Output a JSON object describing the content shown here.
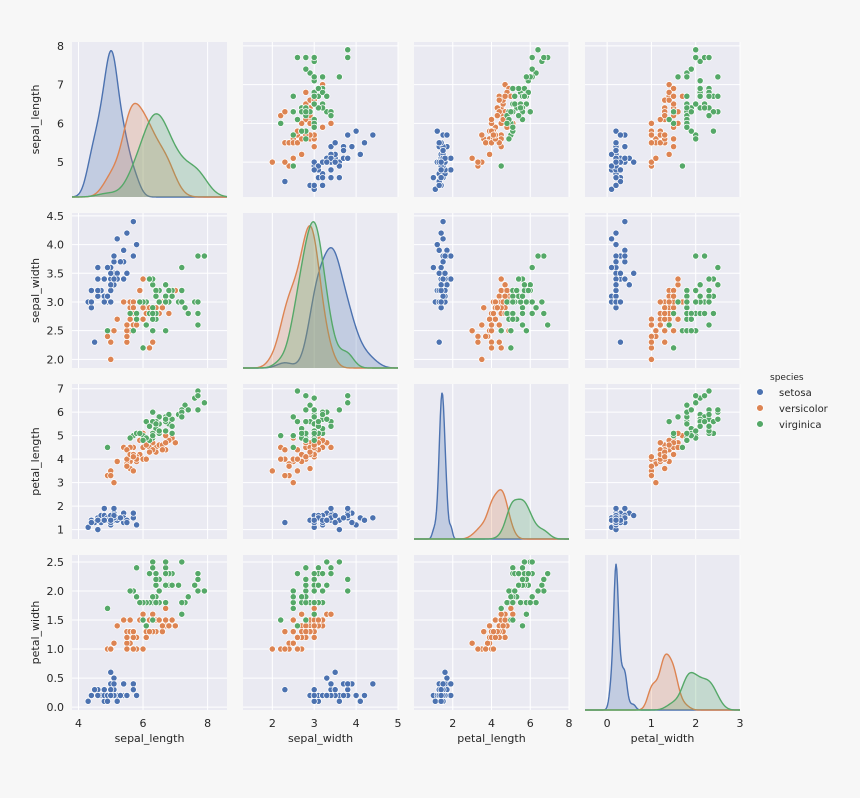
{
  "chart_data": {
    "type": "pairplot",
    "variables": [
      "sepal_length",
      "sepal_width",
      "petal_length",
      "petal_width"
    ],
    "diagonal": "kde",
    "offdiagonal": "scatter",
    "grid": true,
    "background": "#eaeaf2",
    "legend": {
      "title": "species",
      "position": "right",
      "entries": [
        {
          "name": "setosa",
          "color": "#4c72b0"
        },
        {
          "name": "versicolor",
          "color": "#dd8452"
        },
        {
          "name": "virginica",
          "color": "#55a868"
        }
      ]
    },
    "axes": {
      "sepal_length": {
        "lim": [
          3.8,
          8.6
        ],
        "ticks": [
          4,
          6,
          8
        ],
        "ylim": [
          4.1,
          8.1
        ],
        "yticks": [
          5,
          6,
          7,
          8
        ]
      },
      "sepal_width": {
        "lim": [
          1.3,
          5.0
        ],
        "ticks": [
          2,
          3,
          4,
          5
        ],
        "ylim": [
          1.85,
          4.55
        ],
        "yticks": [
          2.0,
          2.5,
          3.0,
          3.5,
          4.0,
          4.5
        ]
      },
      "petal_length": {
        "lim": [
          0.0,
          8.0
        ],
        "ticks": [
          2,
          4,
          6,
          8
        ],
        "ylim": [
          0.6,
          7.2
        ],
        "yticks": [
          1,
          2,
          3,
          4,
          5,
          6,
          7
        ]
      },
      "petal_width": {
        "lim": [
          -0.5,
          3.0
        ],
        "ticks": [
          0,
          1,
          2,
          3
        ],
        "ylim": [
          -0.05,
          2.62
        ],
        "yticks": [
          0.0,
          0.5,
          1.0,
          1.5,
          2.0,
          2.5
        ]
      }
    },
    "tick_labels": {
      "sepal_length": [
        "4",
        "6",
        "8"
      ],
      "sepal_width": [
        "2",
        "3",
        "4",
        "5"
      ],
      "petal_length": [
        "2",
        "4",
        "6",
        "8"
      ],
      "petal_width": [
        "0",
        "1",
        "2",
        "3"
      ]
    },
    "ytick_labels": {
      "sepal_length": [
        "5",
        "6",
        "7",
        "8"
      ],
      "sepal_width": [
        "2.0",
        "2.5",
        "3.0",
        "3.5",
        "4.0",
        "4.5"
      ],
      "petal_length": [
        "1",
        "2",
        "3",
        "4",
        "5",
        "6",
        "7"
      ],
      "petal_width": [
        "0.0",
        "0.5",
        "1.0",
        "1.5",
        "2.0",
        "2.5"
      ]
    },
    "series": [
      {
        "name": "setosa",
        "color": "#4c72b0",
        "points": [
          [
            5.1,
            3.5,
            1.4,
            0.2
          ],
          [
            4.9,
            3.0,
            1.4,
            0.2
          ],
          [
            4.7,
            3.2,
            1.3,
            0.2
          ],
          [
            4.6,
            3.1,
            1.5,
            0.2
          ],
          [
            5.0,
            3.6,
            1.4,
            0.2
          ],
          [
            5.4,
            3.9,
            1.7,
            0.4
          ],
          [
            4.6,
            3.4,
            1.4,
            0.3
          ],
          [
            5.0,
            3.4,
            1.5,
            0.2
          ],
          [
            4.4,
            2.9,
            1.4,
            0.2
          ],
          [
            4.9,
            3.1,
            1.5,
            0.1
          ],
          [
            5.4,
            3.7,
            1.5,
            0.2
          ],
          [
            4.8,
            3.4,
            1.6,
            0.2
          ],
          [
            4.8,
            3.0,
            1.4,
            0.1
          ],
          [
            4.3,
            3.0,
            1.1,
            0.1
          ],
          [
            5.8,
            4.0,
            1.2,
            0.2
          ],
          [
            5.7,
            4.4,
            1.5,
            0.4
          ],
          [
            5.4,
            3.9,
            1.3,
            0.4
          ],
          [
            5.1,
            3.5,
            1.4,
            0.3
          ],
          [
            5.7,
            3.8,
            1.7,
            0.3
          ],
          [
            5.1,
            3.8,
            1.5,
            0.3
          ],
          [
            5.4,
            3.4,
            1.7,
            0.2
          ],
          [
            5.1,
            3.7,
            1.5,
            0.4
          ],
          [
            4.6,
            3.6,
            1.0,
            0.2
          ],
          [
            5.1,
            3.3,
            1.7,
            0.5
          ],
          [
            4.8,
            3.4,
            1.9,
            0.2
          ],
          [
            5.0,
            3.0,
            1.6,
            0.2
          ],
          [
            5.0,
            3.4,
            1.6,
            0.4
          ],
          [
            5.2,
            3.5,
            1.5,
            0.2
          ],
          [
            5.2,
            3.4,
            1.4,
            0.2
          ],
          [
            4.7,
            3.2,
            1.6,
            0.2
          ],
          [
            4.8,
            3.1,
            1.6,
            0.2
          ],
          [
            5.4,
            3.4,
            1.5,
            0.4
          ],
          [
            5.2,
            4.1,
            1.5,
            0.1
          ],
          [
            5.5,
            4.2,
            1.4,
            0.2
          ],
          [
            4.9,
            3.1,
            1.5,
            0.2
          ],
          [
            5.0,
            3.2,
            1.2,
            0.2
          ],
          [
            5.5,
            3.5,
            1.3,
            0.2
          ],
          [
            4.9,
            3.6,
            1.4,
            0.1
          ],
          [
            4.4,
            3.0,
            1.3,
            0.2
          ],
          [
            5.1,
            3.4,
            1.5,
            0.2
          ],
          [
            5.0,
            3.5,
            1.3,
            0.3
          ],
          [
            4.5,
            2.3,
            1.3,
            0.3
          ],
          [
            4.4,
            3.2,
            1.3,
            0.2
          ],
          [
            5.0,
            3.5,
            1.6,
            0.6
          ],
          [
            5.1,
            3.8,
            1.9,
            0.4
          ],
          [
            4.8,
            3.0,
            1.4,
            0.3
          ],
          [
            5.1,
            3.8,
            1.6,
            0.2
          ],
          [
            4.6,
            3.2,
            1.4,
            0.2
          ],
          [
            5.3,
            3.7,
            1.5,
            0.2
          ],
          [
            5.0,
            3.3,
            1.4,
            0.2
          ]
        ]
      },
      {
        "name": "versicolor",
        "color": "#dd8452",
        "points": [
          [
            7.0,
            3.2,
            4.7,
            1.4
          ],
          [
            6.4,
            3.2,
            4.5,
            1.5
          ],
          [
            6.9,
            3.1,
            4.9,
            1.5
          ],
          [
            5.5,
            2.3,
            4.0,
            1.3
          ],
          [
            6.5,
            2.8,
            4.6,
            1.5
          ],
          [
            5.7,
            2.8,
            4.5,
            1.3
          ],
          [
            6.3,
            3.3,
            4.7,
            1.6
          ],
          [
            4.9,
            2.4,
            3.3,
            1.0
          ],
          [
            6.6,
            2.9,
            4.6,
            1.3
          ],
          [
            5.2,
            2.7,
            3.9,
            1.4
          ],
          [
            5.0,
            2.0,
            3.5,
            1.0
          ],
          [
            5.9,
            3.0,
            4.2,
            1.5
          ],
          [
            6.0,
            2.2,
            4.0,
            1.0
          ],
          [
            6.1,
            2.9,
            4.7,
            1.4
          ],
          [
            5.6,
            2.9,
            3.6,
            1.3
          ],
          [
            6.7,
            3.1,
            4.4,
            1.4
          ],
          [
            5.6,
            3.0,
            4.5,
            1.5
          ],
          [
            5.8,
            2.7,
            4.1,
            1.0
          ],
          [
            6.2,
            2.2,
            4.5,
            1.5
          ],
          [
            5.6,
            2.5,
            3.9,
            1.1
          ],
          [
            5.9,
            3.2,
            4.8,
            1.8
          ],
          [
            6.1,
            2.8,
            4.0,
            1.3
          ],
          [
            6.3,
            2.5,
            4.9,
            1.5
          ],
          [
            6.1,
            2.8,
            4.7,
            1.2
          ],
          [
            6.4,
            2.9,
            4.3,
            1.3
          ],
          [
            6.6,
            3.0,
            4.4,
            1.4
          ],
          [
            6.8,
            2.8,
            4.8,
            1.4
          ],
          [
            6.7,
            3.0,
            5.0,
            1.7
          ],
          [
            6.0,
            2.9,
            4.5,
            1.5
          ],
          [
            5.7,
            2.6,
            3.5,
            1.0
          ],
          [
            5.5,
            2.4,
            3.8,
            1.1
          ],
          [
            5.5,
            2.4,
            3.7,
            1.0
          ],
          [
            5.8,
            2.7,
            3.9,
            1.2
          ],
          [
            6.0,
            2.7,
            5.1,
            1.6
          ],
          [
            5.4,
            3.0,
            4.5,
            1.5
          ],
          [
            6.0,
            3.4,
            4.5,
            1.6
          ],
          [
            6.7,
            3.1,
            4.7,
            1.5
          ],
          [
            6.3,
            2.3,
            4.4,
            1.3
          ],
          [
            5.6,
            3.0,
            4.1,
            1.3
          ],
          [
            5.5,
            2.5,
            4.0,
            1.3
          ],
          [
            5.5,
            2.6,
            4.4,
            1.2
          ],
          [
            6.1,
            3.0,
            4.6,
            1.4
          ],
          [
            5.8,
            2.6,
            4.0,
            1.2
          ],
          [
            5.0,
            2.3,
            3.3,
            1.0
          ],
          [
            5.6,
            2.7,
            4.2,
            1.3
          ],
          [
            5.7,
            3.0,
            4.2,
            1.2
          ],
          [
            5.7,
            2.9,
            4.2,
            1.3
          ],
          [
            6.2,
            2.9,
            4.3,
            1.3
          ],
          [
            5.1,
            2.5,
            3.0,
            1.1
          ],
          [
            5.7,
            2.8,
            4.1,
            1.3
          ]
        ]
      },
      {
        "name": "virginica",
        "color": "#55a868",
        "points": [
          [
            6.3,
            3.3,
            6.0,
            2.5
          ],
          [
            5.8,
            2.7,
            5.1,
            1.9
          ],
          [
            7.1,
            3.0,
            5.9,
            2.1
          ],
          [
            6.3,
            2.9,
            5.6,
            1.8
          ],
          [
            6.5,
            3.0,
            5.8,
            2.2
          ],
          [
            7.6,
            3.0,
            6.6,
            2.1
          ],
          [
            4.9,
            2.5,
            4.5,
            1.7
          ],
          [
            7.3,
            2.9,
            6.3,
            1.8
          ],
          [
            6.7,
            2.5,
            5.8,
            1.8
          ],
          [
            7.2,
            3.6,
            6.1,
            2.5
          ],
          [
            6.5,
            3.2,
            5.1,
            2.0
          ],
          [
            6.4,
            2.7,
            5.3,
            1.9
          ],
          [
            6.8,
            3.0,
            5.5,
            2.1
          ],
          [
            5.7,
            2.5,
            5.0,
            2.0
          ],
          [
            5.8,
            2.8,
            5.1,
            2.4
          ],
          [
            6.4,
            3.2,
            5.3,
            2.3
          ],
          [
            6.5,
            3.0,
            5.5,
            1.8
          ],
          [
            7.7,
            3.8,
            6.7,
            2.2
          ],
          [
            7.7,
            2.6,
            6.9,
            2.3
          ],
          [
            6.0,
            2.2,
            5.0,
            1.5
          ],
          [
            6.9,
            3.2,
            5.7,
            2.3
          ],
          [
            5.6,
            2.8,
            4.9,
            2.0
          ],
          [
            7.7,
            2.8,
            6.7,
            2.0
          ],
          [
            6.3,
            2.7,
            4.9,
            1.8
          ],
          [
            6.7,
            3.3,
            5.7,
            2.1
          ],
          [
            7.2,
            3.2,
            6.0,
            1.8
          ],
          [
            6.2,
            2.8,
            4.8,
            1.8
          ],
          [
            6.1,
            3.0,
            4.9,
            1.8
          ],
          [
            6.4,
            2.8,
            5.6,
            2.1
          ],
          [
            7.2,
            3.0,
            5.8,
            1.6
          ],
          [
            7.4,
            2.8,
            6.1,
            1.9
          ],
          [
            7.9,
            3.8,
            6.4,
            2.0
          ],
          [
            6.4,
            2.8,
            5.6,
            2.2
          ],
          [
            6.3,
            2.8,
            5.1,
            1.5
          ],
          [
            6.1,
            2.6,
            5.6,
            1.4
          ],
          [
            7.7,
            3.0,
            6.1,
            2.3
          ],
          [
            6.3,
            3.4,
            5.6,
            2.4
          ],
          [
            6.4,
            3.1,
            5.5,
            1.8
          ],
          [
            6.0,
            3.0,
            4.8,
            1.8
          ],
          [
            6.9,
            3.1,
            5.4,
            2.1
          ],
          [
            6.7,
            3.1,
            5.6,
            2.4
          ],
          [
            6.9,
            3.1,
            5.1,
            2.3
          ],
          [
            5.8,
            2.7,
            5.1,
            1.9
          ],
          [
            6.8,
            3.2,
            5.9,
            2.3
          ],
          [
            6.7,
            3.3,
            5.7,
            2.5
          ],
          [
            6.7,
            3.0,
            5.2,
            2.3
          ],
          [
            6.3,
            2.5,
            5.0,
            1.9
          ],
          [
            6.5,
            3.0,
            5.2,
            2.0
          ],
          [
            6.2,
            3.4,
            5.4,
            2.3
          ],
          [
            5.9,
            3.0,
            5.1,
            1.8
          ]
        ]
      }
    ]
  }
}
